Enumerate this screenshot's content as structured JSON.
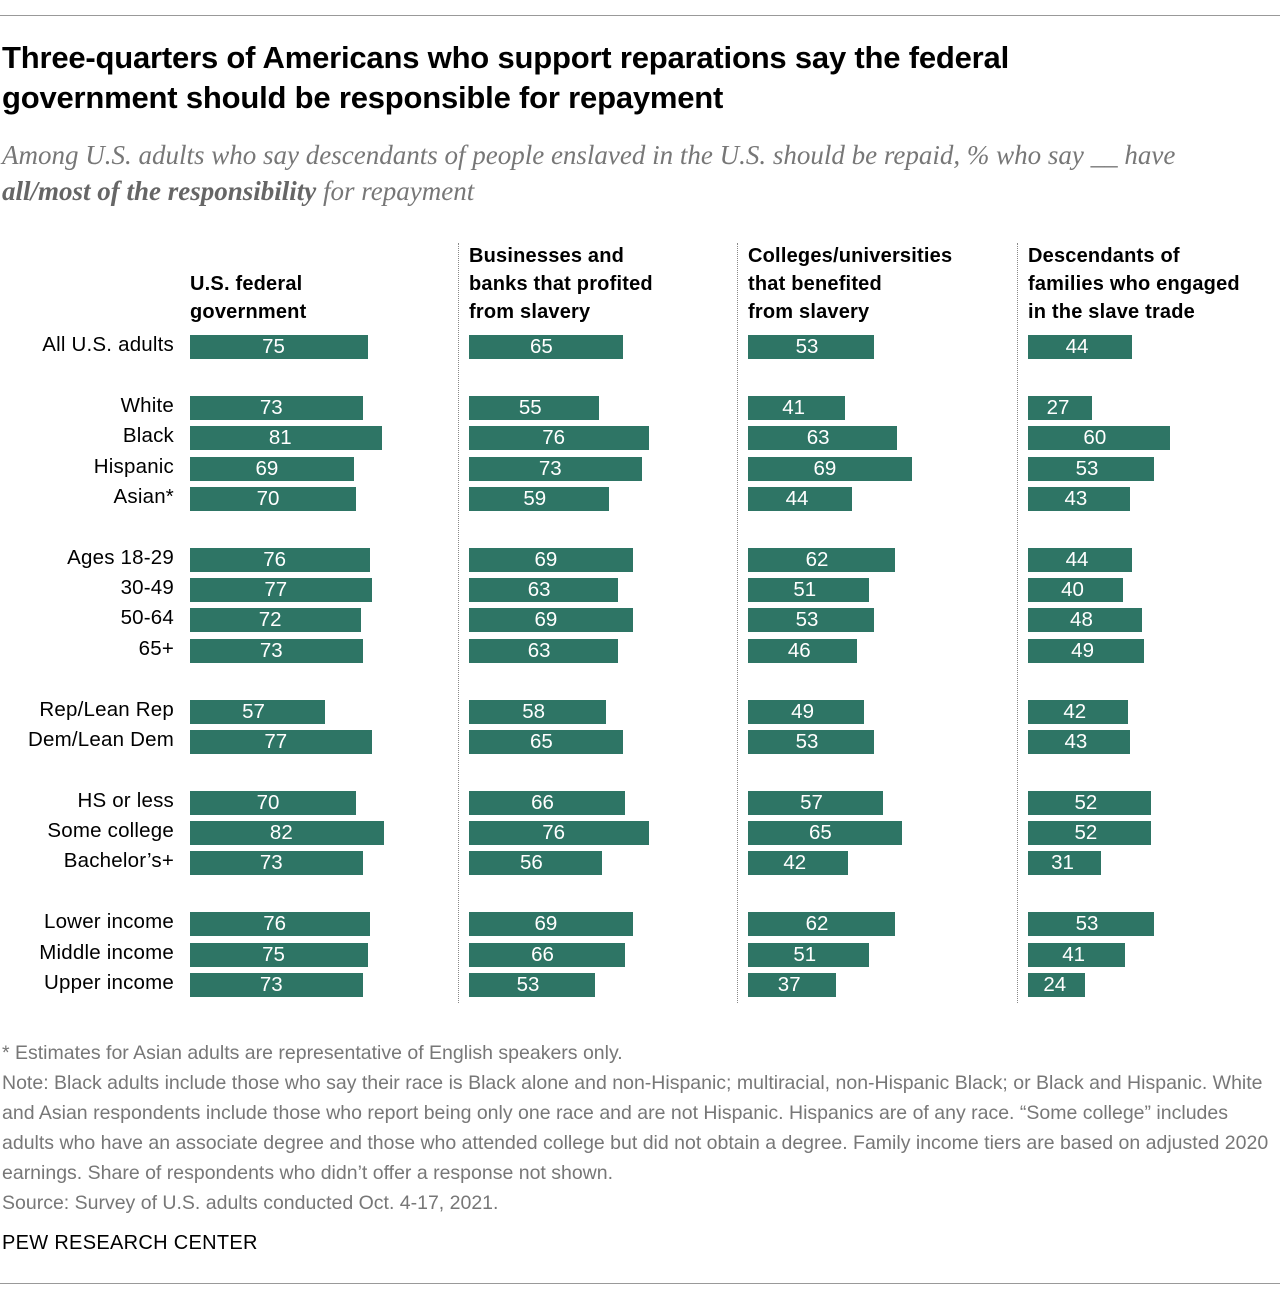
{
  "chart_data": {
    "type": "bar",
    "orientation": "horizontal",
    "title": "Three-quarters of Americans who support reparations say the federal government should be responsible for repayment",
    "subtitle": [
      "Among U.S. adults who say descendants of people enslaved in the U.S. should be repaid, % who say __ have ",
      "all/most of the responsibility",
      " for repayment"
    ],
    "categories": [
      "All U.S. adults",
      "White",
      "Black",
      "Hispanic",
      "Asian*",
      "Ages 18-29",
      "30-49",
      "50-64",
      "65+",
      "Rep/Lean Rep",
      "Dem/Lean Dem",
      "HS or less",
      "Some college",
      "Bachelor’s+",
      "Lower income",
      "Middle income",
      "Upper income"
    ],
    "series": [
      {
        "name": "U.S. federal\ngovernment",
        "color": "#2e7565",
        "values": [
          75,
          73,
          81,
          69,
          70,
          76,
          77,
          72,
          73,
          57,
          77,
          70,
          82,
          73,
          76,
          75,
          73
        ]
      },
      {
        "name": "Businesses and\nbanks that profited\nfrom slavery",
        "color": "#2e7565",
        "values": [
          65,
          55,
          76,
          73,
          59,
          69,
          63,
          69,
          63,
          58,
          65,
          66,
          76,
          56,
          69,
          66,
          53
        ]
      },
      {
        "name": "Colleges/universities\nthat benefited\nfrom slavery",
        "color": "#2e7565",
        "values": [
          53,
          41,
          63,
          69,
          44,
          62,
          51,
          53,
          46,
          49,
          53,
          57,
          65,
          42,
          62,
          51,
          37
        ]
      },
      {
        "name": "Descendants of\nfamilies who engaged\nin the slave trade",
        "color": "#2e7565",
        "values": [
          44,
          27,
          60,
          53,
          43,
          44,
          40,
          48,
          49,
          42,
          43,
          52,
          52,
          31,
          53,
          41,
          24
        ]
      }
    ],
    "notes": [
      "* Estimates for Asian adults are representative of English speakers only.",
      "Note: Black adults include those who say their race is Black alone and non-Hispanic; multiracial, non-Hispanic Black; or Black and Hispanic. White and Asian respondents include those who report being only one race and are not Hispanic. Hispanics are of any race. “Some college” includes adults who have an associate degree and those who attended college but did not obtain a degree. Family income tiers are based on adjusted 2020 earnings. Share of respondents who didn’t offer a response not shown.",
      "Source: Survey of U.S. adults conducted Oct. 4-17, 2021."
    ],
    "source_label": "PEW RESEARCH CENTER"
  }
}
